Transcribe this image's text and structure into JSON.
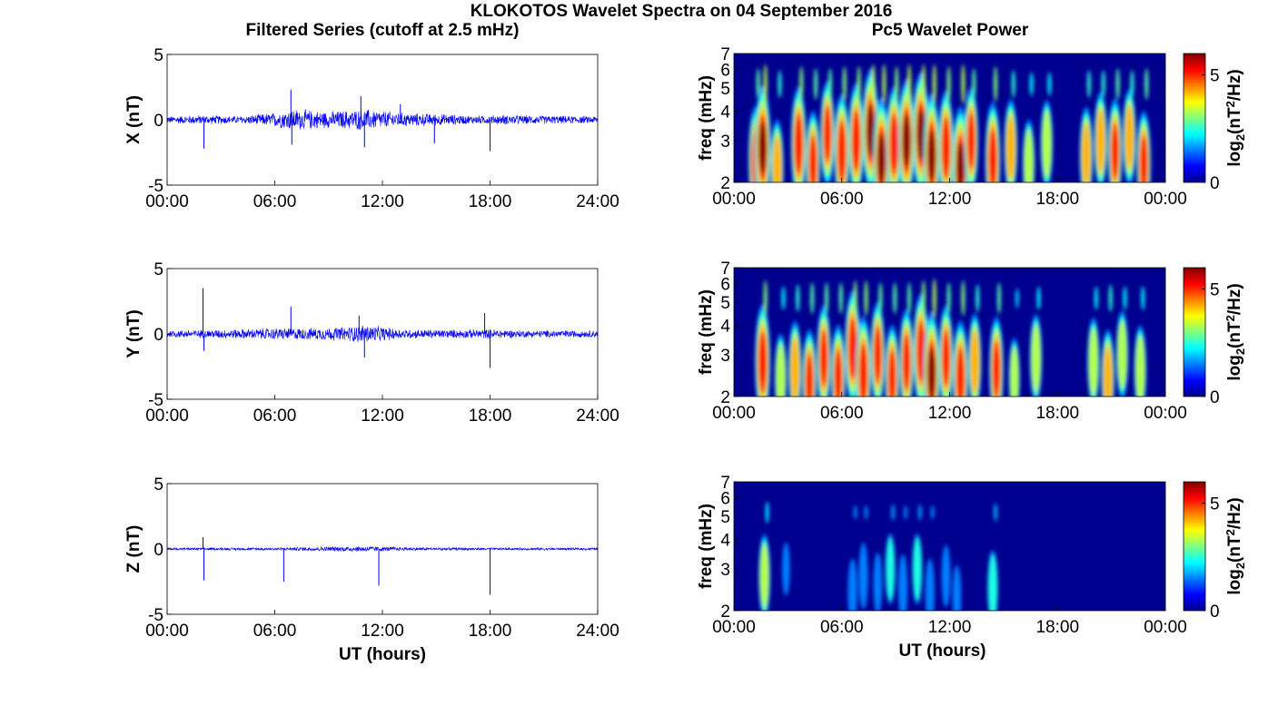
{
  "figure": {
    "title": "KLOKOTOS Wavelet Spectra on 04 September 2016",
    "left_title": "Filtered Series (cutoff at 2.5 mHz)",
    "right_title": "Pc5 Wavelet Power"
  },
  "colors": {
    "trace": "#0000ff",
    "axis": "#000000",
    "background": "#ffffff",
    "spectrum_background": "#00008f"
  },
  "chart_data": [
    {
      "type": "line",
      "component": "X",
      "ylabel": "X (nT)",
      "ylim": [
        -5,
        5
      ],
      "yticks": [
        "5",
        "0",
        "-5"
      ],
      "xlim_hours": [
        0,
        24
      ],
      "xticks": [
        "00:00",
        "06:00",
        "12:00",
        "18:00",
        "24:00"
      ],
      "xlabel": "",
      "noise_amplitude_nT": [
        [
          0,
          0.3
        ],
        [
          2,
          0.4
        ],
        [
          4,
          0.3
        ],
        [
          6,
          0.6
        ],
        [
          7,
          0.9
        ],
        [
          9,
          0.7
        ],
        [
          11,
          0.9
        ],
        [
          13,
          0.6
        ],
        [
          15,
          0.5
        ],
        [
          17,
          0.35
        ],
        [
          19,
          0.4
        ],
        [
          21,
          0.35
        ],
        [
          24,
          0.3
        ]
      ],
      "spikes": [
        {
          "x": 2.05,
          "y": -2.2
        },
        {
          "x": 6.9,
          "y": 2.3
        },
        {
          "x": 6.95,
          "y": -1.9
        },
        {
          "x": 10.8,
          "y": 1.8
        },
        {
          "x": 11.0,
          "y": -2.1
        },
        {
          "x": 13.0,
          "y": 1.2
        },
        {
          "x": 14.9,
          "y": -1.8
        },
        {
          "x": 18.0,
          "y": -2.4
        }
      ]
    },
    {
      "type": "line",
      "component": "Y",
      "ylabel": "Y (nT)",
      "ylim": [
        -5,
        5
      ],
      "yticks": [
        "5",
        "0",
        "-5"
      ],
      "xlim_hours": [
        0,
        24
      ],
      "xticks": [
        "00:00",
        "06:00",
        "12:00",
        "18:00",
        "24:00"
      ],
      "xlabel": "",
      "noise_amplitude_nT": [
        [
          0,
          0.3
        ],
        [
          2,
          0.35
        ],
        [
          4,
          0.4
        ],
        [
          6,
          0.5
        ],
        [
          8,
          0.5
        ],
        [
          10,
          0.6
        ],
        [
          11,
          0.8
        ],
        [
          13,
          0.4
        ],
        [
          16,
          0.35
        ],
        [
          18,
          0.4
        ],
        [
          20,
          0.3
        ],
        [
          24,
          0.3
        ]
      ],
      "spikes": [
        {
          "x": 2.0,
          "y": 3.5
        },
        {
          "x": 2.05,
          "y": -1.3
        },
        {
          "x": 6.9,
          "y": 2.1
        },
        {
          "x": 10.7,
          "y": 1.4
        },
        {
          "x": 11.0,
          "y": -1.8
        },
        {
          "x": 17.7,
          "y": 1.6
        },
        {
          "x": 18.0,
          "y": -2.6
        }
      ]
    },
    {
      "type": "line",
      "component": "Z",
      "ylabel": "Z (nT)",
      "ylim": [
        -5,
        5
      ],
      "yticks": [
        "5",
        "0",
        "-5"
      ],
      "xlim_hours": [
        0,
        24
      ],
      "xticks": [
        "00:00",
        "06:00",
        "12:00",
        "18:00",
        "24:00"
      ],
      "xlabel": "UT (hours)",
      "noise_amplitude_nT": [
        [
          0,
          0.1
        ],
        [
          6,
          0.12
        ],
        [
          9,
          0.2
        ],
        [
          11,
          0.25
        ],
        [
          13,
          0.15
        ],
        [
          18,
          0.1
        ],
        [
          24,
          0.1
        ]
      ],
      "spikes": [
        {
          "x": 2.0,
          "y": 0.9
        },
        {
          "x": 2.05,
          "y": -2.4
        },
        {
          "x": 6.5,
          "y": -2.5
        },
        {
          "x": 11.8,
          "y": -2.8
        },
        {
          "x": 18.0,
          "y": -3.5
        }
      ]
    },
    {
      "type": "heatmap",
      "component": "X",
      "ylabel": "freq (mHz)",
      "ylim_mHz": [
        2,
        7
      ],
      "yscale": "log",
      "yticks": [
        "2",
        "3",
        "4",
        "5",
        "6",
        "7"
      ],
      "xlim_hours": [
        0,
        24
      ],
      "xticks": [
        "00:00",
        "06:00",
        "12:00",
        "18:00",
        "00:00"
      ],
      "xlabel": "",
      "colorbar": {
        "label": "log2(nT2/Hz)",
        "range": [
          0,
          6
        ],
        "ticks": [
          "5",
          "0"
        ]
      },
      "bursts": [
        [
          1.2,
          2.5,
          0.8
        ],
        [
          1.6,
          2.8,
          1.0
        ],
        [
          2.4,
          2.3,
          0.7
        ],
        [
          3.6,
          2.9,
          0.9
        ],
        [
          4.4,
          2.4,
          0.8
        ],
        [
          5.2,
          3.2,
          0.8
        ],
        [
          6.0,
          2.7,
          0.9
        ],
        [
          6.8,
          3.0,
          0.9
        ],
        [
          7.6,
          3.3,
          1.0
        ],
        [
          8.2,
          2.5,
          1.0
        ],
        [
          8.9,
          2.9,
          0.9
        ],
        [
          9.6,
          3.0,
          1.0
        ],
        [
          10.4,
          3.2,
          1.0
        ],
        [
          11.0,
          2.6,
          1.0
        ],
        [
          11.8,
          2.8,
          0.9
        ],
        [
          12.6,
          2.3,
          1.0
        ],
        [
          13.2,
          3.0,
          0.8
        ],
        [
          14.4,
          2.5,
          0.9
        ],
        [
          15.4,
          2.8,
          0.7
        ],
        [
          16.4,
          2.4,
          0.6
        ],
        [
          17.4,
          2.9,
          0.6
        ],
        [
          19.6,
          2.6,
          0.7
        ],
        [
          20.4,
          3.0,
          0.7
        ],
        [
          21.2,
          2.7,
          0.8
        ],
        [
          22.0,
          3.1,
          0.7
        ],
        [
          22.8,
          2.4,
          0.8
        ]
      ]
    },
    {
      "type": "heatmap",
      "component": "Y",
      "ylabel": "freq (mHz)",
      "ylim_mHz": [
        2,
        7
      ],
      "yscale": "log",
      "yticks": [
        "2",
        "3",
        "4",
        "5",
        "6",
        "7"
      ],
      "xlim_hours": [
        0,
        24
      ],
      "xticks": [
        "00:00",
        "06:00",
        "12:00",
        "18:00",
        "00:00"
      ],
      "xlabel": "",
      "colorbar": {
        "label": "log2(nT2/Hz)",
        "range": [
          0,
          6
        ],
        "ticks": [
          "5",
          "0"
        ]
      },
      "bursts": [
        [
          1.6,
          2.8,
          0.9
        ],
        [
          2.6,
          2.4,
          0.6
        ],
        [
          3.4,
          2.6,
          0.7
        ],
        [
          4.2,
          2.3,
          0.8
        ],
        [
          5.0,
          2.9,
          0.8
        ],
        [
          5.8,
          2.4,
          0.8
        ],
        [
          6.6,
          3.2,
          0.9
        ],
        [
          7.2,
          2.5,
          0.9
        ],
        [
          8.0,
          3.0,
          0.8
        ],
        [
          8.8,
          2.4,
          0.8
        ],
        [
          9.6,
          2.8,
          0.8
        ],
        [
          10.4,
          3.1,
          0.9
        ],
        [
          11.0,
          2.5,
          1.0
        ],
        [
          11.8,
          2.9,
          0.8
        ],
        [
          12.6,
          2.4,
          0.9
        ],
        [
          13.4,
          2.8,
          0.7
        ],
        [
          14.6,
          2.6,
          0.8
        ],
        [
          15.6,
          2.4,
          0.5
        ],
        [
          16.8,
          2.9,
          0.6
        ],
        [
          20.0,
          2.8,
          0.6
        ],
        [
          20.8,
          2.4,
          0.7
        ],
        [
          21.6,
          3.0,
          0.6
        ],
        [
          22.6,
          2.6,
          0.6
        ]
      ]
    },
    {
      "type": "heatmap",
      "component": "Z",
      "ylabel": "freq (mHz)",
      "ylim_mHz": [
        2,
        7
      ],
      "yscale": "log",
      "yticks": [
        "2",
        "3",
        "4",
        "5",
        "6",
        "7"
      ],
      "xlim_hours": [
        0,
        24
      ],
      "xticks": [
        "00:00",
        "06:00",
        "12:00",
        "18:00",
        "00:00"
      ],
      "xlabel": "UT (hours)",
      "colorbar": {
        "label": "log2(nT2/Hz)",
        "range": [
          0,
          6
        ],
        "ticks": [
          "5",
          "0"
        ]
      },
      "bursts": [
        [
          1.7,
          2.8,
          0.55
        ],
        [
          2.9,
          3.0,
          0.2
        ],
        [
          6.6,
          2.4,
          0.35
        ],
        [
          7.2,
          2.8,
          0.35
        ],
        [
          8.0,
          2.6,
          0.3
        ],
        [
          8.7,
          3.0,
          0.4
        ],
        [
          9.4,
          2.5,
          0.35
        ],
        [
          10.2,
          3.0,
          0.4
        ],
        [
          10.9,
          2.4,
          0.35
        ],
        [
          11.8,
          2.8,
          0.3
        ],
        [
          12.4,
          2.3,
          0.3
        ],
        [
          14.4,
          2.5,
          0.45
        ],
        [
          15.8,
          2.9,
          0.15
        ],
        [
          17.0,
          2.6,
          0.15
        ],
        [
          19.6,
          2.4,
          0.12
        ],
        [
          22.4,
          2.6,
          0.15
        ]
      ]
    }
  ]
}
